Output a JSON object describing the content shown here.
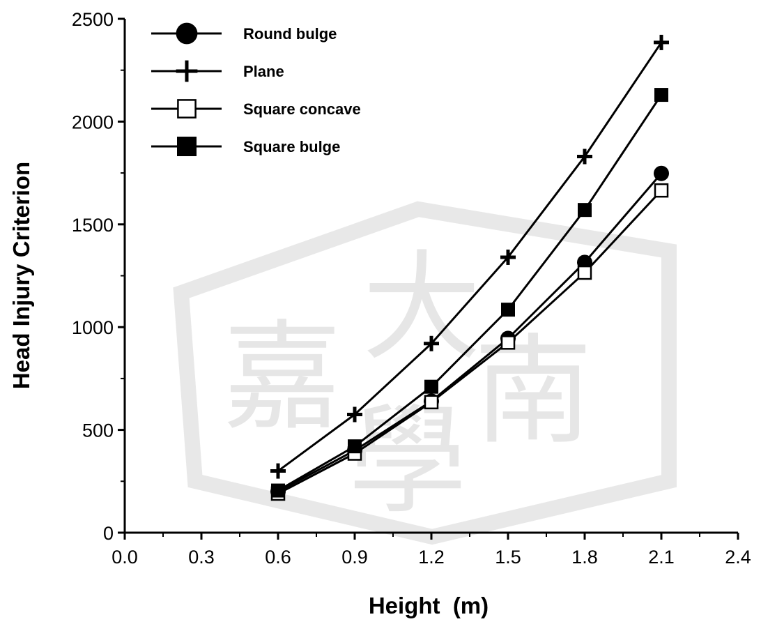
{
  "chart_data": {
    "type": "line",
    "xlabel": "Height  (m)",
    "ylabel": "Head Injury Criterion",
    "xlim": [
      0.0,
      2.4
    ],
    "ylim": [
      0,
      2500
    ],
    "x_ticks": [
      "0.0",
      "0.3",
      "0.6",
      "0.9",
      "1.2",
      "1.5",
      "1.8",
      "2.1",
      "2.4"
    ],
    "y_ticks": [
      "0",
      "500",
      "1000",
      "1500",
      "2000",
      "2500"
    ],
    "grid": false,
    "legend_position": "top-left",
    "x": [
      0.6,
      0.9,
      1.2,
      1.5,
      1.8,
      2.1
    ],
    "series": [
      {
        "name": "Round bulge",
        "marker": "filled-circle",
        "values": [
          200,
          400,
          640,
          945,
          1315,
          1748
        ]
      },
      {
        "name": "Plane",
        "marker": "plus",
        "values": [
          300,
          575,
          920,
          1340,
          1830,
          2385
        ]
      },
      {
        "name": "Square concave",
        "marker": "open-square",
        "values": [
          190,
          385,
          635,
          925,
          1265,
          1665
        ]
      },
      {
        "name": "Square bulge",
        "marker": "filled-square",
        "values": [
          205,
          420,
          710,
          1085,
          1570,
          2130
        ]
      }
    ]
  },
  "watermark": {
    "characters": [
      "嘉",
      "南",
      "大",
      "學"
    ]
  },
  "colors": {
    "line": "#000000",
    "watermark": "#c8c8c8"
  }
}
